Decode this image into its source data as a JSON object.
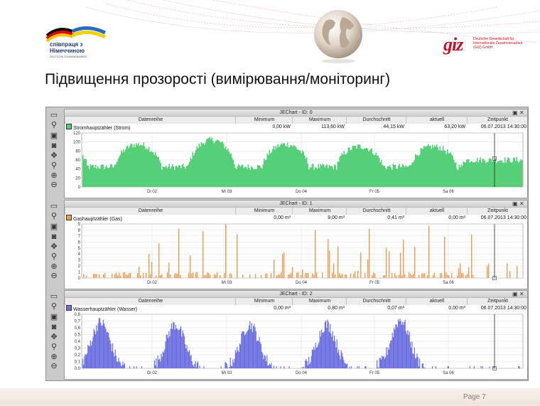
{
  "slide": {
    "title": "Підвищення прозорості (вимірювання/моніторинг)",
    "page_label": "Page 7",
    "partner_logo": {
      "line1": "співпраця з",
      "line2": "Німеччиною",
      "line3": "DEUTSCHE ZUSAMMENARBEIT"
    },
    "giz_logo": {
      "mark": "giz",
      "text": "Deutsche Gesellschaft für Internationale Zusammenarbeit (GIZ) GmbH"
    }
  },
  "colors": {
    "strom": "#55cf78",
    "gas": "#f59a4e",
    "wasser": "#6b6fe0"
  },
  "table_headers": {
    "series": "Datenreihe",
    "min": "Minimum",
    "max": "Maximum",
    "avg": "Durchschnitt",
    "current": "aktuell",
    "time": "Zeitpunkt"
  },
  "date_ticks": [
    "Di 02",
    "Mi 03",
    "Do 04",
    "Fr 05",
    "Sa 06"
  ],
  "toolbar_icons": [
    "chart-icon",
    "connect-icon",
    "save-icon",
    "camera-icon",
    "move-icon",
    "search-icon",
    "zoom-in-icon",
    "zoom-out-icon"
  ],
  "panels": [
    {
      "title": "JEChart - ID: 0",
      "series_name": "Stromhauptzähler (Strom)",
      "min": "0,00 kW",
      "max": "113,60 kW",
      "avg": "44,15 kW",
      "current": "63,20 kW",
      "time": "06.07.2013  14:30:00",
      "yticks": [
        "120",
        "100",
        "80",
        "60",
        "40",
        "20",
        "0"
      ]
    },
    {
      "title": "JEChart - ID: 1",
      "series_name": "Gashauptzähler (Gas)",
      "min": "0,00 m³",
      "max": "9,00 m³",
      "avg": "0,41 m³",
      "current": "0,00 m³",
      "time": "06.07.2013  14:30:00",
      "yticks": [
        "9",
        "8",
        "7",
        "6",
        "5",
        "4",
        "3",
        "2",
        "1",
        "0"
      ]
    },
    {
      "title": "JEChart - ID: 2",
      "series_name": "Wasserhauptzähler (Wasser)",
      "min": "0,00 m³",
      "max": "0,80 m³",
      "avg": "0,07 m³",
      "current": "0,00 m³",
      "time": "06.07.2013  14:30:00",
      "yticks": [
        "0,8",
        "0,7",
        "0,6",
        "0,5",
        "0,4",
        "0,3",
        "0,2",
        "0,1",
        "0,0"
      ]
    }
  ],
  "chart_data": [
    {
      "type": "area",
      "ylim": [
        0,
        120
      ],
      "xlabel": "",
      "ylabel": "",
      "categories": [
        "Di 02",
        "Mi 03",
        "Do 04",
        "Fr 05",
        "Sa 06"
      ],
      "series": [
        {
          "name": "Stromhauptzähler (Strom)",
          "day_peak": [
            95,
            95,
            105,
            95,
            90
          ],
          "night_base": 45,
          "current": 63.2
        }
      ],
      "grid": true
    },
    {
      "type": "bar",
      "ylim": [
        0,
        9
      ],
      "categories": [
        "Di 02",
        "Mi 03",
        "Do 04",
        "Fr 05",
        "Sa 06"
      ],
      "series": [
        {
          "name": "Gashauptzähler (Gas)",
          "max": 9.0,
          "avg": 0.41
        }
      ],
      "grid": true
    },
    {
      "type": "area",
      "ylim": [
        0,
        0.8
      ],
      "categories": [
        "Di 02",
        "Mi 03",
        "Do 04",
        "Fr 05",
        "Sa 06"
      ],
      "series": [
        {
          "name": "Wasserhauptzähler (Wasser)",
          "day_peak": [
            0.68,
            0.65,
            0.65,
            0.65,
            0.72
          ]
        }
      ],
      "grid": true
    }
  ]
}
